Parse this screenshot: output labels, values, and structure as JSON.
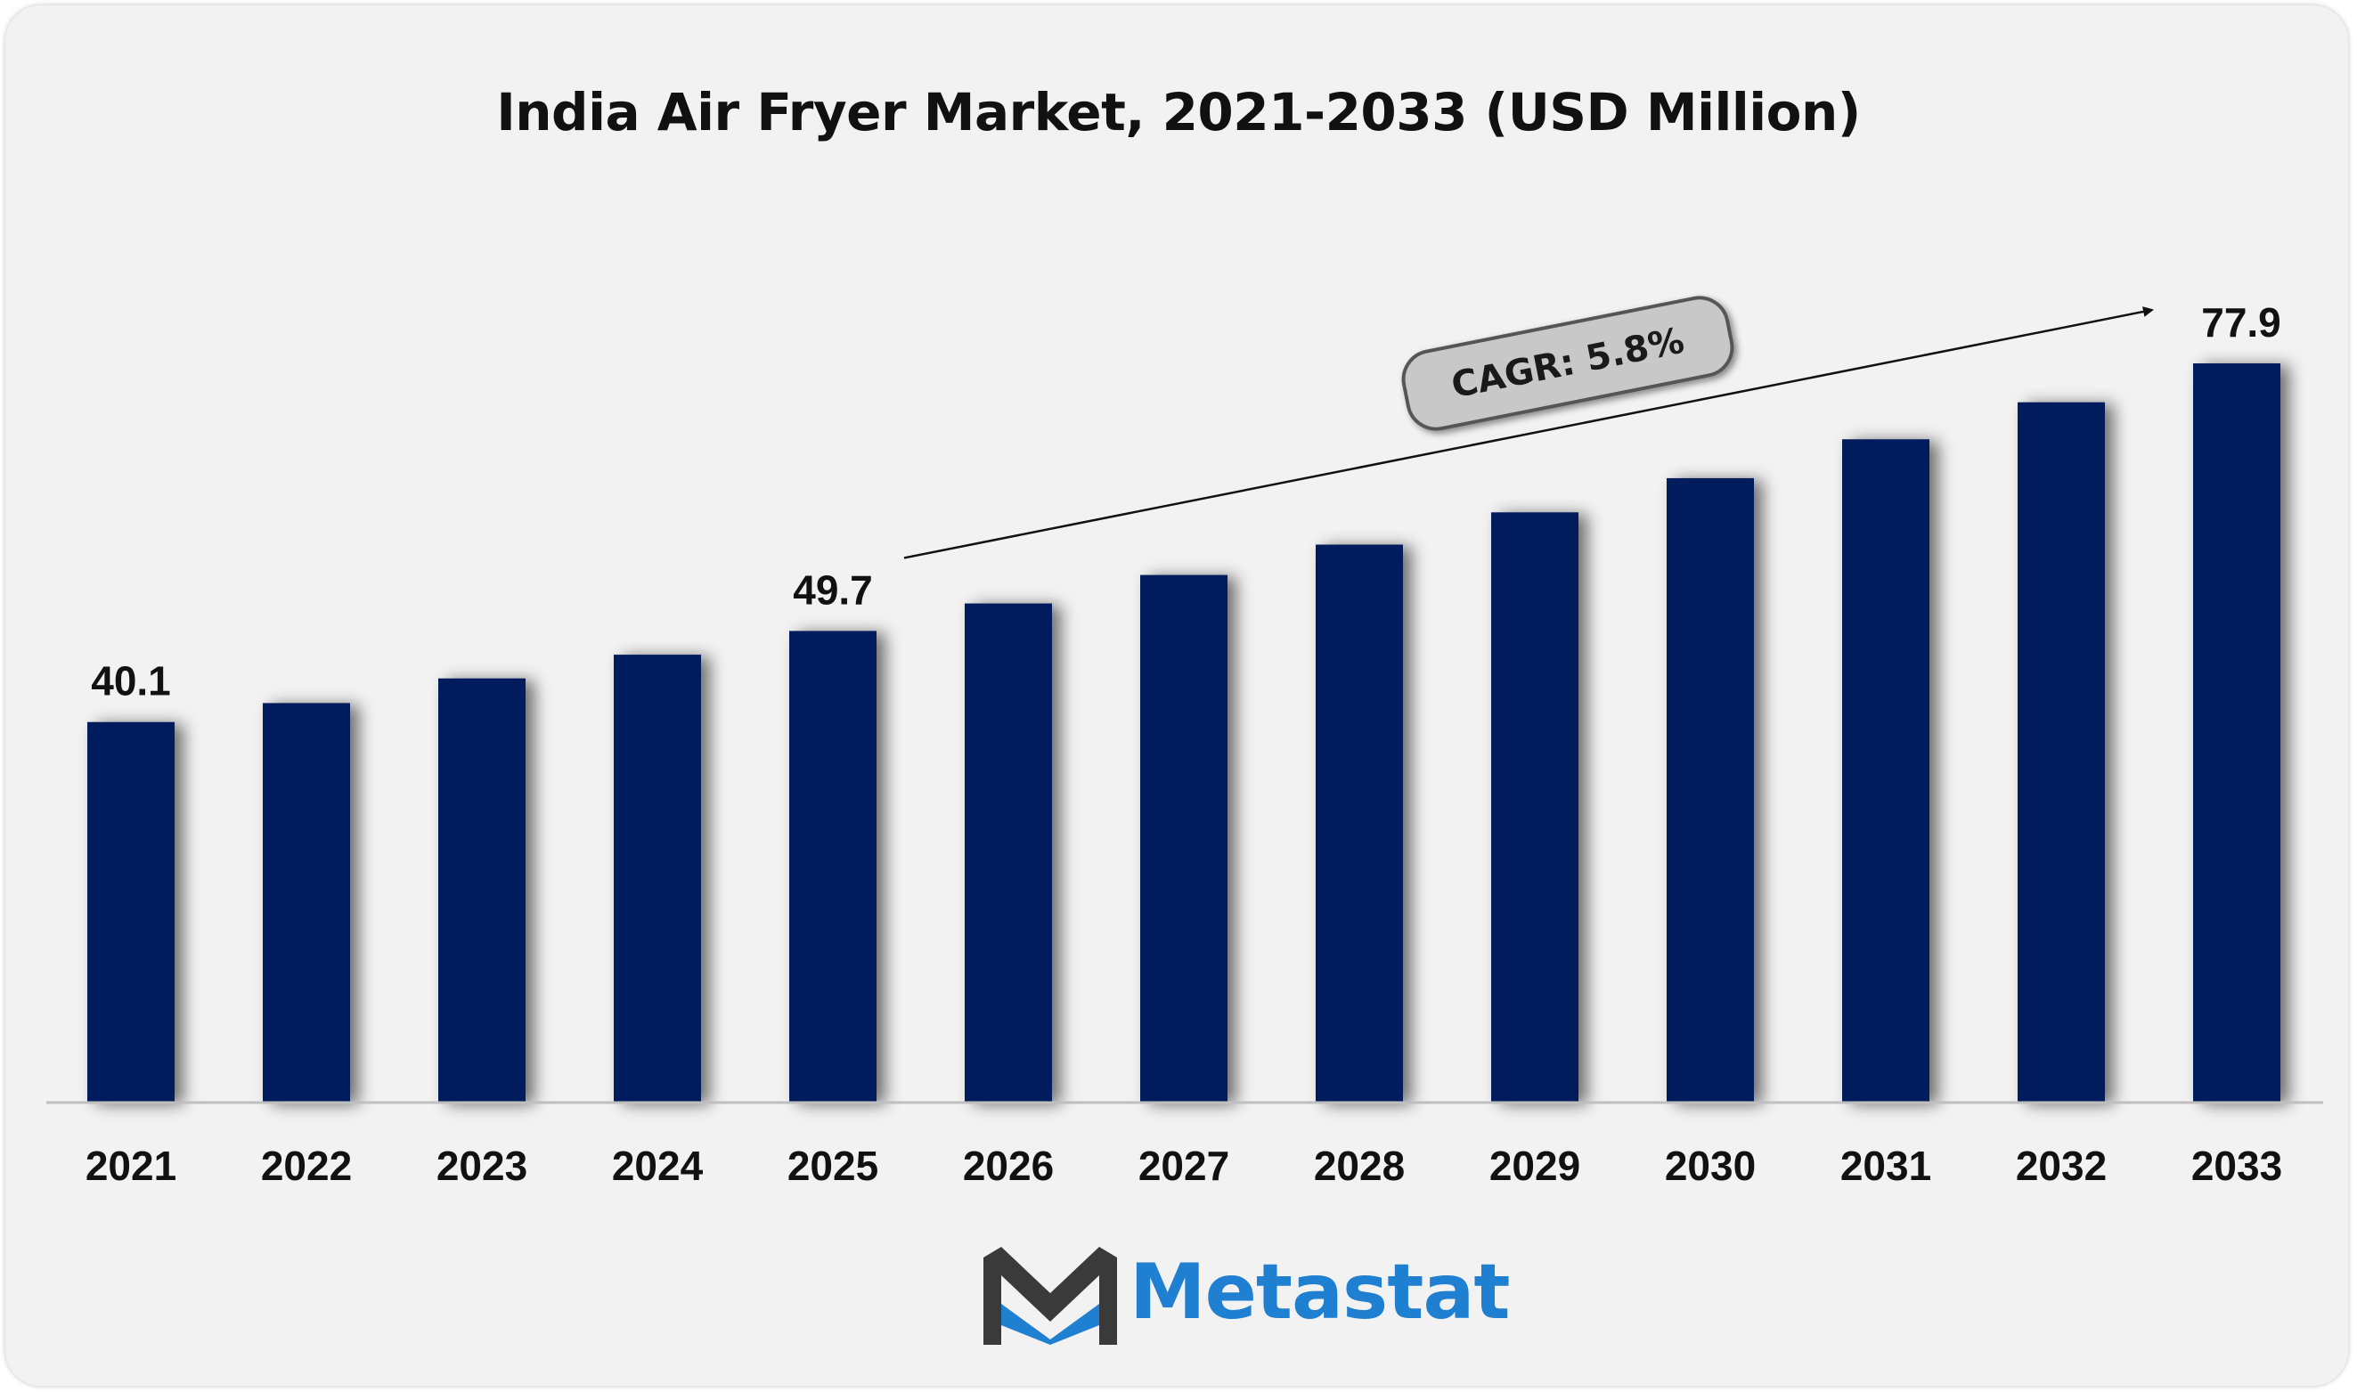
{
  "colors": {
    "bar": "#001f5b",
    "background": "#f2f2f2",
    "text": "#111111",
    "cagr_box": "#c8c8c8",
    "logo_blue": "#1f7fd1",
    "logo_dark": "#3a3a3a"
  },
  "logo": {
    "text": "Metastat",
    "icon": "metastat-m-logo-icon"
  },
  "chart_data": {
    "type": "bar",
    "title": "India Air Fryer Market, 2021-2033 (USD Million)",
    "categories": [
      "2021",
      "2022",
      "2023",
      "2024",
      "2025",
      "2026",
      "2027",
      "2028",
      "2029",
      "2030",
      "2031",
      "2032",
      "2033"
    ],
    "values": [
      40.1,
      42.1,
      44.7,
      47.2,
      49.7,
      52.6,
      55.6,
      58.8,
      62.2,
      65.8,
      69.9,
      73.8,
      77.9
    ],
    "data_labels": [
      {
        "index": 0,
        "text": "40.1"
      },
      {
        "index": 4,
        "text": "49.7"
      },
      {
        "index": 12,
        "text": "77.9"
      }
    ],
    "annotation": "CAGR: 5.8%",
    "xlabel": "",
    "ylabel": "",
    "ylim": [
      0,
      80
    ],
    "grid": false,
    "legend": "none"
  }
}
